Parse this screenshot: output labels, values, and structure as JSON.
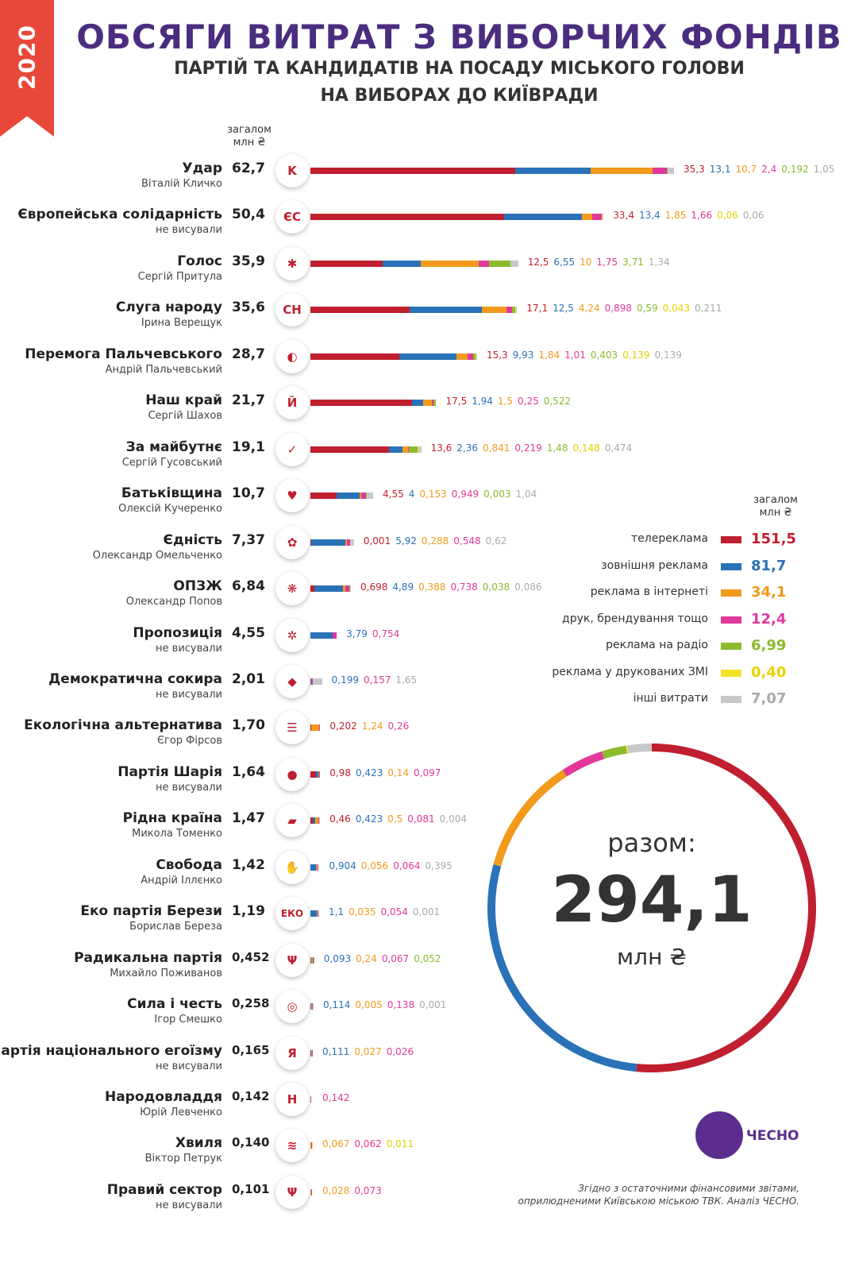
{
  "year": "2020",
  "title": "ОБСЯГИ ВИТРАТ З ВИБОРЧИХ ФОНДІВ",
  "subtitle_line1": "ПАРТІЙ ТА КАНДИДАТІВ НА ПОСАДУ МІСЬКОГО ГОЛОВИ",
  "subtitle_line2": "НА ВИБОРАХ ДО КИЇВРАДИ",
  "col_header_line1": "загалом",
  "col_header_line2": "млн ₴",
  "colors": {
    "tv": "#c01f2f",
    "outdoor": "#2a72b8",
    "internet": "#f19a1b",
    "print_branding": "#e0399b",
    "radio": "#8bbb2d",
    "press": "#f5e228",
    "other": "#c8c8c8",
    "accent": "#4b2d7f",
    "year_tab": "#e8483a"
  },
  "chart_data": [
    {
      "type": "bar",
      "stacked": true,
      "orientation": "horizontal",
      "categories": [
        "Удар",
        "Європейська солідарність",
        "Голос",
        "Слуга народу",
        "Перемога Пальчевського",
        "Наш край",
        "За майбутнє",
        "Батьківщина",
        "Єдність",
        "ОПЗЖ",
        "Пропозиція",
        "Демократична сокира",
        "Екологічна альтернатива",
        "Партія Шарія",
        "Рідна країна",
        "Свобода",
        "Еко партія Берези",
        "Радикальна партія",
        "Сила і честь",
        "Партія національного егоїзму",
        "Народовладдя",
        "Хвиля",
        "Правий сектор"
      ],
      "rows": [
        {
          "name": "Удар",
          "candidate": "Віталій Кличко",
          "total": "62,7",
          "logo": "K",
          "segments": [
            {
              "k": "tv",
              "v": "35,3"
            },
            {
              "k": "outdoor",
              "v": "13,1"
            },
            {
              "k": "internet",
              "v": "10,7"
            },
            {
              "k": "print_branding",
              "v": "2,4"
            },
            {
              "k": "radio",
              "v": "0,192"
            },
            {
              "k": "other",
              "v": "1,05"
            }
          ]
        },
        {
          "name": "Європейська солідарність",
          "candidate": "не висували",
          "total": "50,4",
          "logo": "ЄС",
          "segments": [
            {
              "k": "tv",
              "v": "33,4"
            },
            {
              "k": "outdoor",
              "v": "13,4"
            },
            {
              "k": "internet",
              "v": "1,85"
            },
            {
              "k": "print_branding",
              "v": "1,66"
            },
            {
              "k": "press",
              "v": "0,06"
            },
            {
              "k": "other",
              "v": "0,06"
            }
          ]
        },
        {
          "name": "Голос",
          "candidate": "Сергій Притула",
          "total": "35,9",
          "logo": "✱",
          "segments": [
            {
              "k": "tv",
              "v": "12,5"
            },
            {
              "k": "outdoor",
              "v": "6,55"
            },
            {
              "k": "internet",
              "v": "10"
            },
            {
              "k": "print_branding",
              "v": "1,75"
            },
            {
              "k": "radio",
              "v": "3,71"
            },
            {
              "k": "other",
              "v": "1,34"
            }
          ]
        },
        {
          "name": "Слуга народу",
          "candidate": "Ірина Верещук",
          "total": "35,6",
          "logo": "СН",
          "segments": [
            {
              "k": "tv",
              "v": "17,1"
            },
            {
              "k": "outdoor",
              "v": "12,5"
            },
            {
              "k": "internet",
              "v": "4,24"
            },
            {
              "k": "print_branding",
              "v": "0,898"
            },
            {
              "k": "radio",
              "v": "0,59"
            },
            {
              "k": "press",
              "v": "0,043"
            },
            {
              "k": "other",
              "v": "0,211"
            }
          ]
        },
        {
          "name": "Перемога Пальчевського",
          "candidate": "Андрій Пальчевський",
          "total": "28,7",
          "logo": "◐",
          "segments": [
            {
              "k": "tv",
              "v": "15,3"
            },
            {
              "k": "outdoor",
              "v": "9,93"
            },
            {
              "k": "internet",
              "v": "1,84"
            },
            {
              "k": "print_branding",
              "v": "1,01"
            },
            {
              "k": "radio",
              "v": "0,403"
            },
            {
              "k": "press",
              "v": "0,139"
            },
            {
              "k": "other",
              "v": "0,139"
            }
          ]
        },
        {
          "name": "Наш край",
          "candidate": "Сергій Шахов",
          "total": "21,7",
          "logo": "Й",
          "segments": [
            {
              "k": "tv",
              "v": "17,5"
            },
            {
              "k": "outdoor",
              "v": "1,94"
            },
            {
              "k": "internet",
              "v": "1,5"
            },
            {
              "k": "print_branding",
              "v": "0,25"
            },
            {
              "k": "radio",
              "v": "0,522"
            }
          ]
        },
        {
          "name": "За майбутнє",
          "candidate": "Сергій Гусовський",
          "total": "19,1",
          "logo": "✓",
          "segments": [
            {
              "k": "tv",
              "v": "13,6"
            },
            {
              "k": "outdoor",
              "v": "2,36"
            },
            {
              "k": "internet",
              "v": "0,841"
            },
            {
              "k": "print_branding",
              "v": "0,219"
            },
            {
              "k": "radio",
              "v": "1,48"
            },
            {
              "k": "press",
              "v": "0,148"
            },
            {
              "k": "other",
              "v": "0,474"
            }
          ]
        },
        {
          "name": "Батьківщина",
          "candidate": "Олексій Кучеренко",
          "total": "10,7",
          "logo": "♥",
          "segments": [
            {
              "k": "tv",
              "v": "4,55"
            },
            {
              "k": "outdoor",
              "v": "4"
            },
            {
              "k": "internet",
              "v": "0,153"
            },
            {
              "k": "print_branding",
              "v": "0,949"
            },
            {
              "k": "radio",
              "v": "0,003"
            },
            {
              "k": "other",
              "v": "1,04"
            }
          ]
        },
        {
          "name": "Єдність",
          "candidate": "Олександр Омельченко",
          "total": "7,37",
          "logo": "✿",
          "segments": [
            {
              "k": "tv",
              "v": "0,001"
            },
            {
              "k": "outdoor",
              "v": "5,92"
            },
            {
              "k": "internet",
              "v": "0,288"
            },
            {
              "k": "print_branding",
              "v": "0,548"
            },
            {
              "k": "other",
              "v": "0,62"
            }
          ]
        },
        {
          "name": "ОПЗЖ",
          "candidate": "Олександр Попов",
          "total": "6,84",
          "logo": "❋",
          "segments": [
            {
              "k": "tv",
              "v": "0,698"
            },
            {
              "k": "outdoor",
              "v": "4,89"
            },
            {
              "k": "internet",
              "v": "0,388"
            },
            {
              "k": "print_branding",
              "v": "0,738"
            },
            {
              "k": "radio",
              "v": "0,038"
            },
            {
              "k": "other",
              "v": "0,086"
            }
          ]
        },
        {
          "name": "Пропозиція",
          "candidate": "не висували",
          "total": "4,55",
          "logo": "✲",
          "segments": [
            {
              "k": "outdoor",
              "v": "3,79"
            },
            {
              "k": "print_branding",
              "v": "0,754"
            }
          ]
        },
        {
          "name": "Демократична сокира",
          "candidate": "не висували",
          "total": "2,01",
          "logo": "◆",
          "segments": [
            {
              "k": "outdoor",
              "v": "0,199"
            },
            {
              "k": "print_branding",
              "v": "0,157"
            },
            {
              "k": "other",
              "v": "1,65"
            }
          ]
        },
        {
          "name": "Екологічна альтернатива",
          "candidate": "Єгор Фірсов",
          "total": "1,70",
          "logo": "☰",
          "segments": [
            {
              "k": "tv",
              "v": "0,202"
            },
            {
              "k": "internet",
              "v": "1,24"
            },
            {
              "k": "print_branding",
              "v": "0,26"
            }
          ]
        },
        {
          "name": "Партія Шарія",
          "candidate": "не висували",
          "total": "1,64",
          "logo": "●",
          "segments": [
            {
              "k": "tv",
              "v": "0,98"
            },
            {
              "k": "outdoor",
              "v": "0,423"
            },
            {
              "k": "internet",
              "v": "0,14"
            },
            {
              "k": "print_branding",
              "v": "0,097"
            }
          ]
        },
        {
          "name": "Рідна країна",
          "candidate": "Микола Томенко",
          "total": "1,47",
          "logo": "▰",
          "segments": [
            {
              "k": "tv",
              "v": "0,46"
            },
            {
              "k": "outdoor",
              "v": "0,423"
            },
            {
              "k": "internet",
              "v": "0,5"
            },
            {
              "k": "print_branding",
              "v": "0,081"
            },
            {
              "k": "other",
              "v": "0,004"
            }
          ]
        },
        {
          "name": "Свобода",
          "candidate": "Андрій Іллєнко",
          "total": "1,42",
          "logo": "✋",
          "segments": [
            {
              "k": "outdoor",
              "v": "0,904"
            },
            {
              "k": "internet",
              "v": "0,056"
            },
            {
              "k": "print_branding",
              "v": "0,064"
            },
            {
              "k": "other",
              "v": "0,395"
            }
          ]
        },
        {
          "name": "Еко партія Берези",
          "candidate": "Борислав Береза",
          "total": "1,19",
          "logo": "ЕКО",
          "segments": [
            {
              "k": "outdoor",
              "v": "1,1"
            },
            {
              "k": "internet",
              "v": "0,035"
            },
            {
              "k": "print_branding",
              "v": "0,054"
            },
            {
              "k": "other",
              "v": "0,001"
            }
          ]
        },
        {
          "name": "Радикальна партія",
          "candidate": "Михайло Поживанов",
          "total": "0,452",
          "logo": "Ψ",
          "segments": [
            {
              "k": "outdoor",
              "v": "0,093"
            },
            {
              "k": "internet",
              "v": "0,24"
            },
            {
              "k": "print_branding",
              "v": "0,067"
            },
            {
              "k": "radio",
              "v": "0,052"
            }
          ]
        },
        {
          "name": "Сила і честь",
          "candidate": "Ігор Смешко",
          "total": "0,258",
          "logo": "◎",
          "segments": [
            {
              "k": "outdoor",
              "v": "0,114"
            },
            {
              "k": "internet",
              "v": "0,005"
            },
            {
              "k": "print_branding",
              "v": "0,138"
            },
            {
              "k": "other",
              "v": "0,001"
            }
          ]
        },
        {
          "name": "Партія національного егоїзму",
          "candidate": "не висували",
          "total": "0,165",
          "logo": "Я",
          "segments": [
            {
              "k": "outdoor",
              "v": "0,111"
            },
            {
              "k": "internet",
              "v": "0,027"
            },
            {
              "k": "print_branding",
              "v": "0,026"
            }
          ]
        },
        {
          "name": "Народовладдя",
          "candidate": "Юрій Левченко",
          "total": "0,142",
          "logo": "Н",
          "segments": [
            {
              "k": "print_branding",
              "v": "0,142"
            }
          ]
        },
        {
          "name": "Хвиля",
          "candidate": "Віктор Петрук",
          "total": "0,140",
          "logo": "≋",
          "segments": [
            {
              "k": "internet",
              "v": "0,067"
            },
            {
              "k": "print_branding",
              "v": "0,062"
            },
            {
              "k": "press",
              "v": "0,011"
            }
          ]
        },
        {
          "name": "Правий сектор",
          "candidate": "не висували",
          "total": "0,101",
          "logo": "Ψ",
          "segments": [
            {
              "k": "internet",
              "v": "0,028"
            },
            {
              "k": "print_branding",
              "v": "0,073"
            }
          ]
        }
      ]
    },
    {
      "type": "pie",
      "donut": true,
      "categories": [
        "телереклама",
        "зовнішня реклама",
        "реклама в інтернеті",
        "друк, брендування тощо",
        "реклама на радіо",
        "реклама у друкованих ЗМІ",
        "інші витрати"
      ],
      "values": [
        151.5,
        81.7,
        34.1,
        12.4,
        6.99,
        0.4,
        7.07
      ],
      "legend_values": [
        "151,5",
        "81,7",
        "34,1",
        "12,4",
        "6,99",
        "0,40",
        "7,07"
      ],
      "keys": [
        "tv",
        "outdoor",
        "internet",
        "print_branding",
        "radio",
        "press",
        "other"
      ],
      "legend_header_line1": "загалом",
      "legend_header_line2": "млн ₴",
      "total_label": "разом:",
      "total_value": "294,1",
      "total_unit": "млн ₴"
    }
  ],
  "brand_name": "ЧЕСНО",
  "footnote_line1": "Згідно з остаточними фінансовими звітами,",
  "footnote_line2": "оприлюдненими Київською міською ТВК. Аналіз ЧЕСНО."
}
